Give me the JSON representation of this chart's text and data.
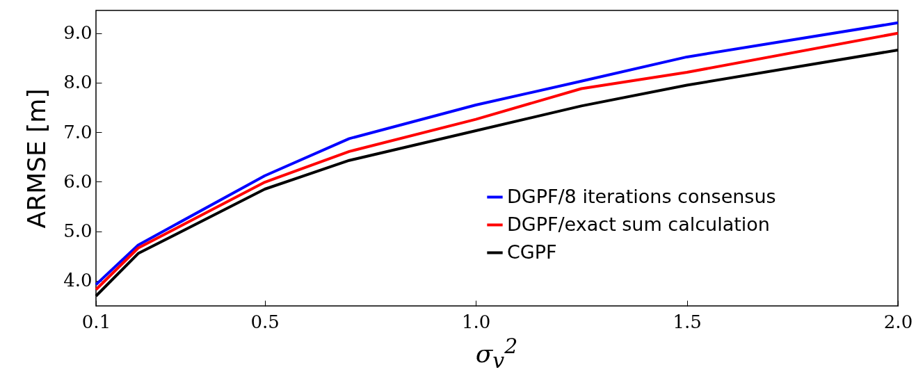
{
  "chart_data": {
    "type": "line",
    "xlabel": "σ$_{v}$$^{2}$",
    "ylabel": "ARMSE [m]",
    "x": [
      0.1,
      0.2,
      0.5,
      0.7,
      1.0,
      1.25,
      1.5,
      2.0
    ],
    "series": [
      {
        "name": "DGPF/8 iterations consensus",
        "color": "#0000ff",
        "values": [
          3.92,
          4.72,
          6.12,
          6.87,
          7.55,
          8.03,
          8.52,
          9.21
        ]
      },
      {
        "name": "DGPF/exact sum calculation",
        "color": "#ff0000",
        "values": [
          3.82,
          4.66,
          5.99,
          6.61,
          7.26,
          7.88,
          8.21,
          9.0
        ]
      },
      {
        "name": "CGPF",
        "color": "#000000",
        "values": [
          3.69,
          4.55,
          5.85,
          6.43,
          7.03,
          7.53,
          7.95,
          8.66
        ]
      }
    ],
    "xlim": [
      0.1,
      2.0
    ],
    "ylim": [
      3.49,
      9.46
    ],
    "xticks": [
      0.1,
      0.5,
      {
        "value": 1.0,
        "label": "1.0"
      },
      1.5,
      {
        "value": 2.0,
        "label": "2.0"
      }
    ],
    "yticks": [
      {
        "value": 4,
        "label": "4.0"
      },
      {
        "value": 5,
        "label": "5.0"
      },
      {
        "value": 6,
        "label": "6.0"
      },
      {
        "value": 7,
        "label": "7.0"
      },
      {
        "value": 8,
        "label": "8.0"
      },
      {
        "value": 9,
        "label": "9.0"
      }
    ],
    "legend": "bottom right"
  }
}
